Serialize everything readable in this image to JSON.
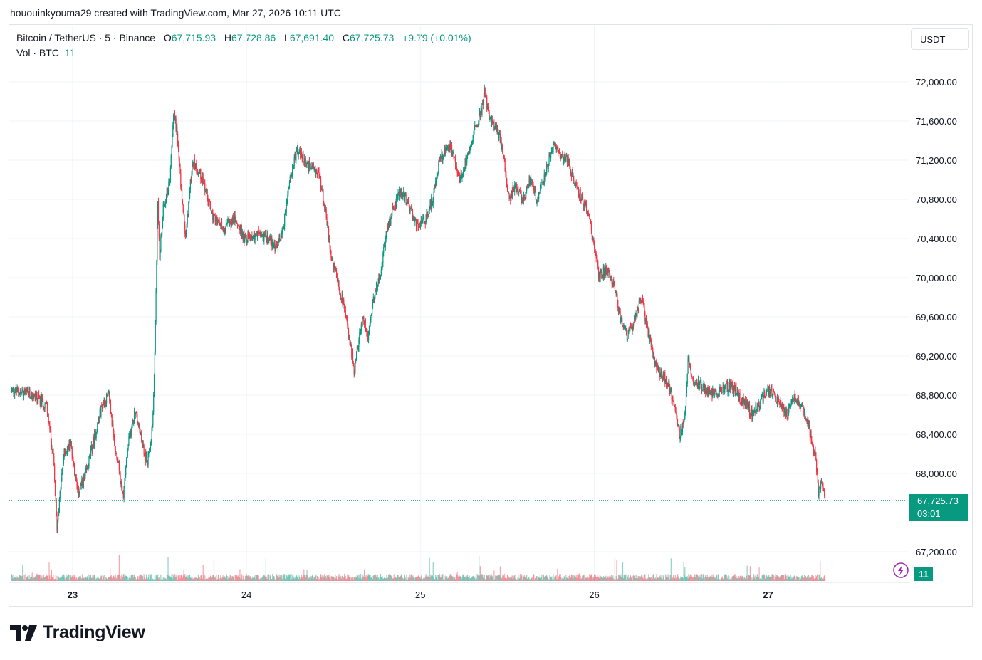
{
  "caption": "hououinkyouma29 created with TradingView.com, Mar 27, 2026 10:11 UTC",
  "legend": {
    "symbol": "Bitcoin / TetherUS · 5 · Binance",
    "open_label": "O",
    "open": "67,715.93",
    "high_label": "H",
    "high": "67,728.86",
    "low_label": "L",
    "low": "67,691.40",
    "close_label": "C",
    "close": "67,725.73",
    "change": "+9.79 (+0.01%)"
  },
  "volume_legend": {
    "label": "Vol · BTC",
    "value": "11"
  },
  "currency_button": "USDT",
  "last_price": {
    "price": "67,725.73",
    "countdown": "03:01"
  },
  "volume_badge": "11",
  "brand": "TradingView",
  "colors": {
    "up": "#089981",
    "down": "#f23645",
    "grid": "#f0f3fa",
    "axis_text": "#131722"
  },
  "chart_data": {
    "type": "candlestick",
    "symbol": "BTCUSDT",
    "interval": "5",
    "exchange": "Binance",
    "y_ticks": [
      72000,
      71600,
      71200,
      70800,
      70400,
      70000,
      69600,
      69200,
      68800,
      68400,
      68000,
      67200
    ],
    "y_tick_labels": [
      "72,000.00",
      "71,600.00",
      "71,200.00",
      "70,800.00",
      "70,400.00",
      "70,000.00",
      "69,600.00",
      "69,200.00",
      "68,800.00",
      "68,400.00",
      "68,000.00",
      "67,200.00"
    ],
    "x_ticks": [
      {
        "day": 22.63,
        "label": "23"
      },
      {
        "day": 23.63,
        "label": "24"
      },
      {
        "day": 24.63,
        "label": "25"
      },
      {
        "day": 25.63,
        "label": "26"
      },
      {
        "day": 26.63,
        "label": "27"
      }
    ],
    "x_range": [
      22.27,
      27.43
    ],
    "y_range": [
      67230,
      72300
    ],
    "last_price": 67725.73,
    "price_path": [
      [
        22.28,
        68850
      ],
      [
        22.4,
        68800
      ],
      [
        22.48,
        68700
      ],
      [
        22.52,
        68150
      ],
      [
        22.54,
        67450
      ],
      [
        22.58,
        68200
      ],
      [
        22.62,
        68300
      ],
      [
        22.66,
        67800
      ],
      [
        22.7,
        67950
      ],
      [
        22.74,
        68250
      ],
      [
        22.8,
        68700
      ],
      [
        22.84,
        68800
      ],
      [
        22.87,
        68300
      ],
      [
        22.89,
        68150
      ],
      [
        22.92,
        67750
      ],
      [
        22.95,
        68300
      ],
      [
        22.99,
        68650
      ],
      [
        23.03,
        68300
      ],
      [
        23.06,
        68100
      ],
      [
        23.09,
        68500
      ],
      [
        23.1,
        69000
      ],
      [
        23.12,
        70800
      ],
      [
        23.13,
        70200
      ],
      [
        23.15,
        70700
      ],
      [
        23.19,
        71000
      ],
      [
        23.21,
        71700
      ],
      [
        23.23,
        71500
      ],
      [
        23.25,
        71000
      ],
      [
        23.28,
        70400
      ],
      [
        23.32,
        71200
      ],
      [
        23.38,
        71000
      ],
      [
        23.44,
        70600
      ],
      [
        23.5,
        70500
      ],
      [
        23.56,
        70600
      ],
      [
        23.62,
        70400
      ],
      [
        23.7,
        70450
      ],
      [
        23.76,
        70400
      ],
      [
        23.8,
        70300
      ],
      [
        23.84,
        70500
      ],
      [
        23.88,
        71000
      ],
      [
        23.92,
        71300
      ],
      [
        23.98,
        71150
      ],
      [
        24.03,
        71100
      ],
      [
        24.06,
        70950
      ],
      [
        24.09,
        70600
      ],
      [
        24.12,
        70200
      ],
      [
        24.16,
        69900
      ],
      [
        24.19,
        69700
      ],
      [
        24.22,
        69400
      ],
      [
        24.25,
        69050
      ],
      [
        24.27,
        69300
      ],
      [
        24.3,
        69600
      ],
      [
        24.33,
        69400
      ],
      [
        24.36,
        69800
      ],
      [
        24.4,
        70050
      ],
      [
        24.43,
        70400
      ],
      [
        24.47,
        70700
      ],
      [
        24.52,
        70900
      ],
      [
        24.57,
        70700
      ],
      [
        24.62,
        70500
      ],
      [
        24.66,
        70600
      ],
      [
        24.7,
        70800
      ],
      [
        24.74,
        71200
      ],
      [
        24.8,
        71350
      ],
      [
        24.86,
        71000
      ],
      [
        24.9,
        71250
      ],
      [
        24.94,
        71500
      ],
      [
        24.98,
        71700
      ],
      [
        25.0,
        71900
      ],
      [
        25.03,
        71600
      ],
      [
        25.06,
        71550
      ],
      [
        25.1,
        71350
      ],
      [
        25.14,
        70800
      ],
      [
        25.18,
        70950
      ],
      [
        25.22,
        70800
      ],
      [
        25.26,
        71000
      ],
      [
        25.3,
        70800
      ],
      [
        25.34,
        71000
      ],
      [
        25.37,
        71200
      ],
      [
        25.4,
        71350
      ],
      [
        25.44,
        71250
      ],
      [
        25.48,
        71200
      ],
      [
        25.52,
        70950
      ],
      [
        25.56,
        70800
      ],
      [
        25.6,
        70650
      ],
      [
        25.63,
        70300
      ],
      [
        25.66,
        70000
      ],
      [
        25.7,
        70100
      ],
      [
        25.74,
        69950
      ],
      [
        25.78,
        69600
      ],
      [
        25.82,
        69400
      ],
      [
        25.86,
        69550
      ],
      [
        25.9,
        69800
      ],
      [
        25.94,
        69450
      ],
      [
        25.98,
        69100
      ],
      [
        26.02,
        69000
      ],
      [
        26.06,
        68900
      ],
      [
        26.09,
        68700
      ],
      [
        26.12,
        68400
      ],
      [
        26.15,
        68550
      ],
      [
        26.17,
        69200
      ],
      [
        26.2,
        68950
      ],
      [
        26.24,
        68900
      ],
      [
        26.3,
        68800
      ],
      [
        26.36,
        68850
      ],
      [
        26.42,
        68900
      ],
      [
        26.46,
        68800
      ],
      [
        26.5,
        68700
      ],
      [
        26.54,
        68600
      ],
      [
        26.58,
        68700
      ],
      [
        26.62,
        68850
      ],
      [
        26.66,
        68800
      ],
      [
        26.7,
        68700
      ],
      [
        26.74,
        68600
      ],
      [
        26.78,
        68800
      ],
      [
        26.82,
        68700
      ],
      [
        26.86,
        68500
      ],
      [
        26.9,
        68200
      ],
      [
        26.92,
        67800
      ],
      [
        26.94,
        67950
      ],
      [
        26.96,
        67700
      ]
    ]
  }
}
